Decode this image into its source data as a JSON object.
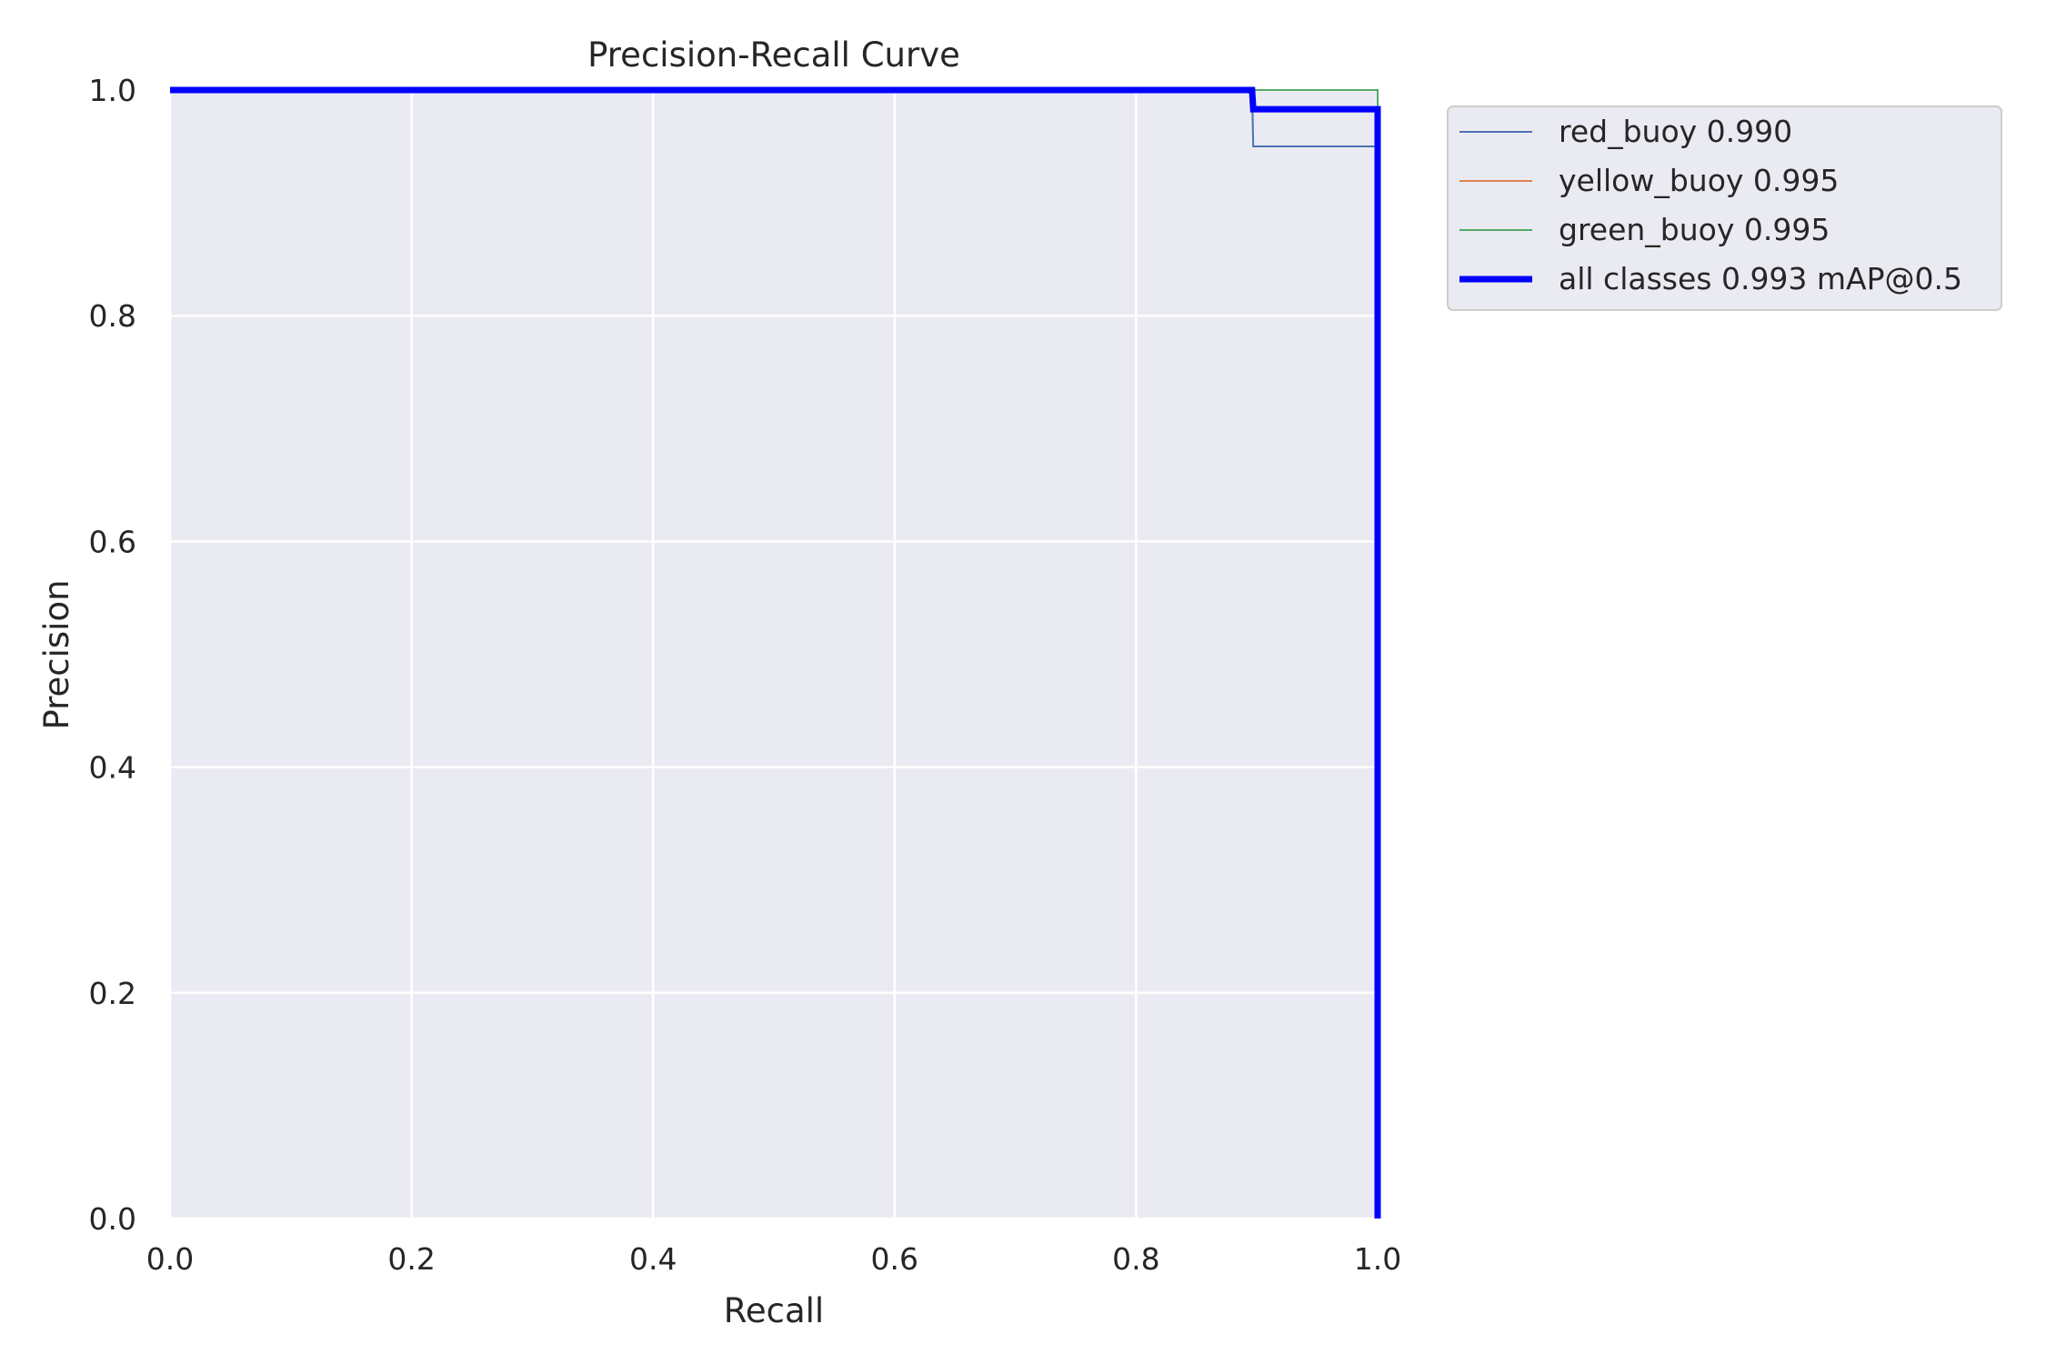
{
  "chart_data": {
    "type": "line",
    "title": "Precision-Recall Curve",
    "xlabel": "Recall",
    "ylabel": "Precision",
    "xlim": [
      0,
      1
    ],
    "ylim": [
      0,
      1
    ],
    "xticks": [
      "0.0",
      "0.2",
      "0.4",
      "0.6",
      "0.8",
      "1.0"
    ],
    "yticks": [
      "0.0",
      "0.2",
      "0.4",
      "0.6",
      "0.8",
      "1.0"
    ],
    "grid": true,
    "legend_position": "outside-top-right",
    "background_color": "#eaeaf2",
    "series": [
      {
        "name": "red_buoy 0.990",
        "color": "#4c72b0",
        "width": 2,
        "x": [
          0,
          0.896,
          0.897,
          0.999,
          1.0,
          1.0
        ],
        "y": [
          1.0,
          1.0,
          0.95,
          0.95,
          0.95,
          0.0
        ]
      },
      {
        "name": "yellow_buoy 0.995",
        "color": "#dd8452",
        "width": 2,
        "x": [
          0,
          0.999,
          1.0,
          1.0
        ],
        "y": [
          1.0,
          1.0,
          1.0,
          0.0
        ]
      },
      {
        "name": "green_buoy 0.995",
        "color": "#55a868",
        "width": 2,
        "x": [
          0,
          0.999,
          1.0,
          1.0
        ],
        "y": [
          1.0,
          1.0,
          1.0,
          0.0
        ]
      },
      {
        "name": "all classes 0.993 mAP@0.5",
        "color": "#0000ff",
        "width": 7,
        "x": [
          0,
          0.896,
          0.897,
          0.999,
          1.0,
          1.0
        ],
        "y": [
          1.0,
          1.0,
          0.983,
          0.983,
          0.983,
          0.0
        ]
      }
    ]
  }
}
